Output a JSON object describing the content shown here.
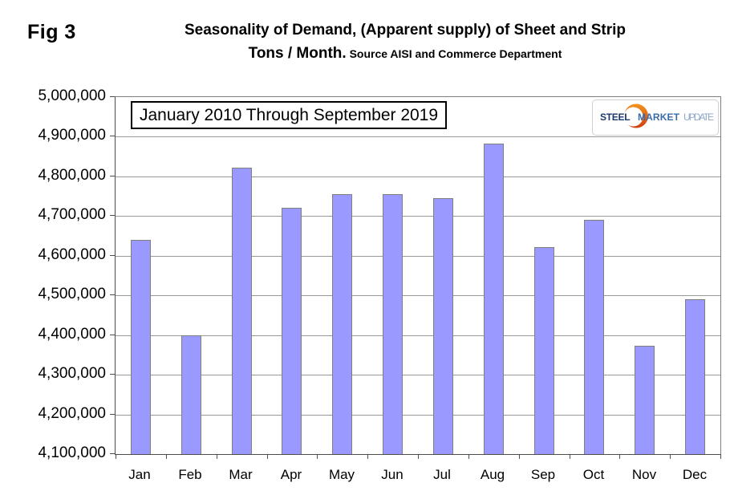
{
  "figure_label": "Fig 3",
  "title": {
    "line1": "Seasonality of Demand, (Apparent supply) of Sheet and Strip",
    "line2_main": "Tons / Month.",
    "line2_source": " Source AISI and Commerce Department"
  },
  "annotation_box": {
    "text": "January 2010 Through September 2019"
  },
  "logo": {
    "part1": "STEEL",
    "part2": "MARKET",
    "part3": "UPDATE",
    "colors": {
      "part1": "#1d3a6d",
      "part2": "#3a6ca8",
      "part3": "#8fa9c8",
      "crescent_top": "#f5921e",
      "crescent_bottom": "#d13f10"
    }
  },
  "chart_data": {
    "type": "bar",
    "title": "Seasonality of Demand, (Apparent supply) of Sheet and Strip Tons / Month. Source AISI and Commerce Department",
    "subtitle": "January 2010 Through September 2019",
    "categories": [
      "Jan",
      "Feb",
      "Mar",
      "Apr",
      "May",
      "Jun",
      "Jul",
      "Aug",
      "Sep",
      "Oct",
      "Nov",
      "Dec"
    ],
    "values": [
      4640000,
      4400000,
      4822000,
      4720000,
      4756000,
      4755000,
      4746000,
      4883000,
      4622000,
      4690000,
      4373000,
      4490000
    ],
    "xlabel": "",
    "ylabel": "",
    "ylim": [
      4100000,
      5000000
    ],
    "ytick_step": 100000,
    "ytick_labels": [
      "5,000,000",
      "4,900,000",
      "4,800,000",
      "4,700,000",
      "4,600,000",
      "4,500,000",
      "4,400,000",
      "4,300,000",
      "4,200,000",
      "4,100,000"
    ],
    "grid": true,
    "legend": false,
    "bar_fill": "#9999ff",
    "bar_border": "#7f7f7f",
    "grid_color": "#999999"
  }
}
